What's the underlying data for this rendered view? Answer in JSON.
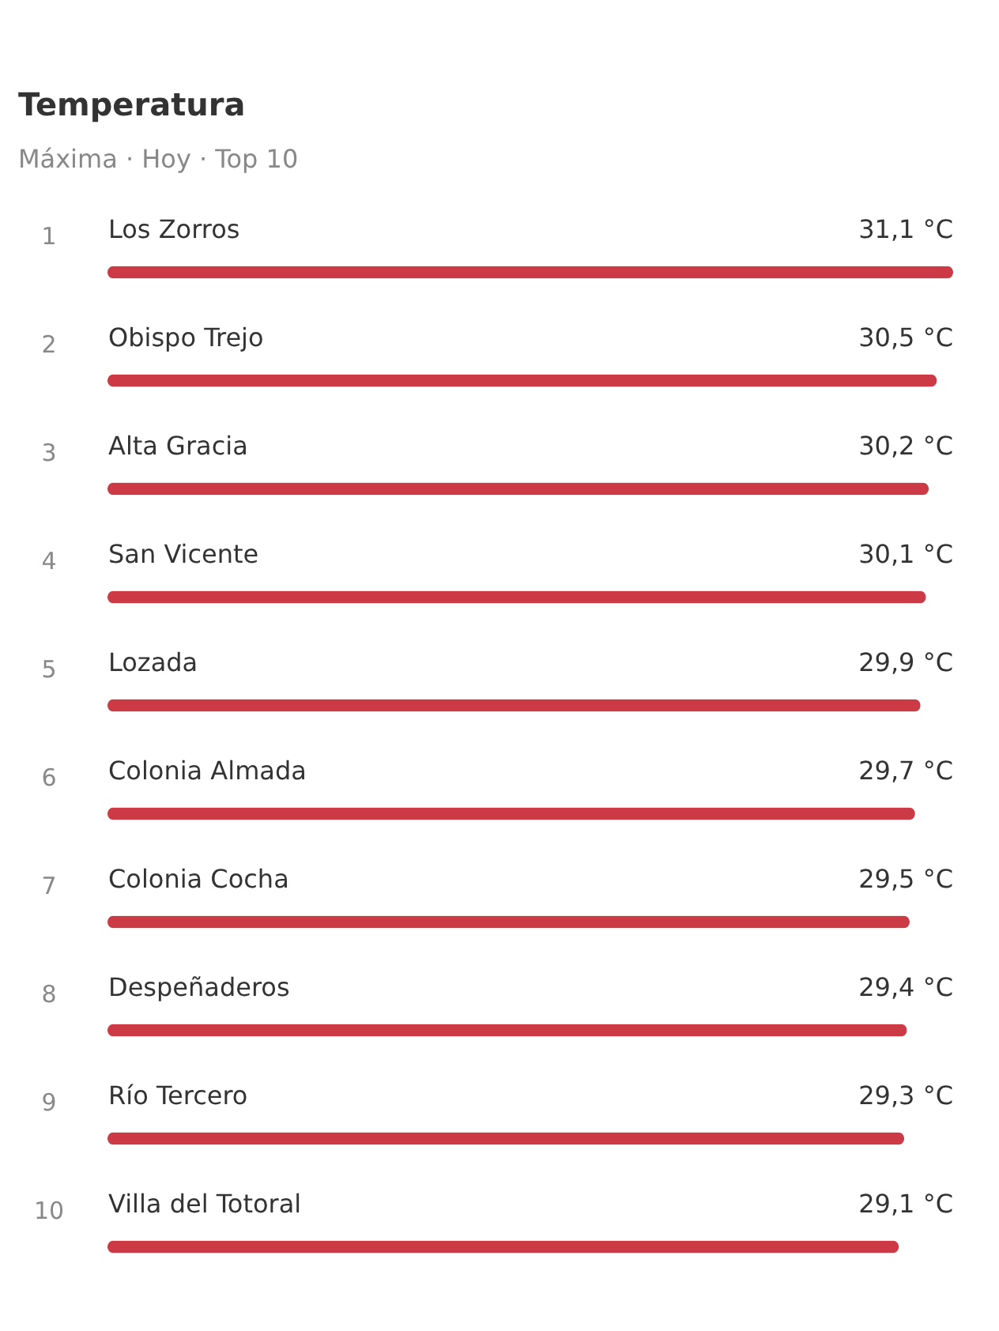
{
  "chart_data": {
    "type": "bar",
    "orientation": "horizontal",
    "title": "Temperatura",
    "subtitle": "Máxima · Hoy · Top 10",
    "categories": [
      "Los Zorros",
      "Obispo Trejo",
      "Alta Gracia",
      "San Vicente",
      "Lozada",
      "Colonia Almada",
      "Colonia Cocha",
      "Despeñaderos",
      "Río Tercero",
      "Villa del Totoral"
    ],
    "values": [
      31.1,
      30.5,
      30.2,
      30.1,
      29.9,
      29.7,
      29.5,
      29.4,
      29.3,
      29.1
    ],
    "value_labels": [
      "31,1 °C",
      "30,5 °C",
      "30,2 °C",
      "30,1 °C",
      "29,9 °C",
      "29,7 °C",
      "29,5 °C",
      "29,4 °C",
      "29,3 °C",
      "29,1 °C"
    ],
    "color": "#cc3a45",
    "xlim": [
      0,
      31.1
    ],
    "tick_labels": "y",
    "grid": false,
    "annotations": [
      "1",
      "2",
      "3",
      "4",
      "5",
      "6",
      "7",
      "8",
      "9",
      "10"
    ]
  }
}
